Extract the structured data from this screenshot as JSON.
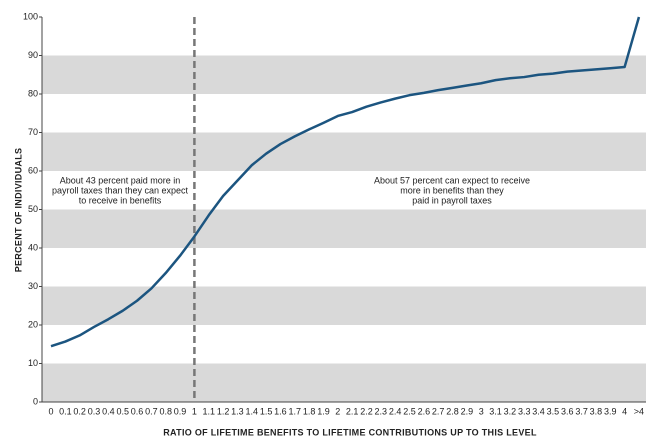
{
  "chart_data": {
    "type": "line",
    "x_label": "RATIO OF LIFETIME BENEFITS TO LIFETIME CONTRIBUTIONS UP TO THIS LEVEL",
    "y_label": "PERCENT OF INDIVIDUALS",
    "categories": [
      "0",
      "0.1",
      "0.2",
      "0.3",
      "0.4",
      "0.5",
      "0.6",
      "0.7",
      "0.8",
      "0.9",
      "1",
      "1.1",
      "1.2",
      "1.3",
      "1.4",
      "1.5",
      "1.6",
      "1.7",
      "1.8",
      "1.9",
      "2",
      "2.1",
      "2.2",
      "2.3",
      "2.4",
      "2.5",
      "2.6",
      "2.7",
      "2.8",
      "2.9",
      "3",
      "3.1",
      "3.2",
      "3.3",
      "3.4",
      "3.5",
      "3.6",
      "3.7",
      "3.8",
      "3.9",
      "4",
      ">4"
    ],
    "values": [
      14.5,
      15.7,
      17.3,
      19.5,
      21.5,
      23.7,
      26.3,
      29.5,
      33.5,
      38,
      43,
      48.5,
      53.5,
      57.5,
      61.5,
      64.5,
      67,
      69,
      70.8,
      72.5,
      74.3,
      75.3,
      76.7,
      77.8,
      78.8,
      79.7,
      80.3,
      81,
      81.6,
      82.2,
      82.8,
      83.6,
      84.1,
      84.4,
      85,
      85.3,
      85.8,
      86.1,
      86.4,
      86.7,
      87,
      100
    ],
    "color": "#1c5580",
    "band_color": "#d9d9d9",
    "ylim": [
      0,
      100
    ],
    "yticks": [
      0,
      10,
      20,
      30,
      40,
      50,
      60,
      70,
      80,
      90,
      100
    ],
    "vline_category": "1",
    "annotations": [
      {
        "lines": [
          "About 43 percent paid more in",
          "payroll taxes than they can expect",
          "to receive in benefits"
        ]
      },
      {
        "lines": [
          "About 57 percent can expect to receive",
          "more in benefits than they",
          "paid in payroll taxes"
        ]
      }
    ]
  }
}
